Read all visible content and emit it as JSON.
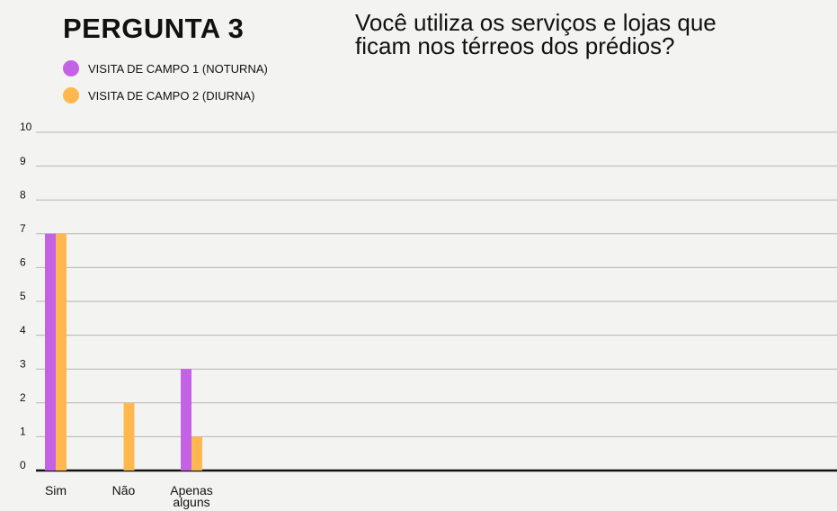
{
  "chart_data": {
    "type": "bar",
    "title": "PERGUNTA 3",
    "subtitle": "Você utiliza os serviços e lojas que ficam nos térreos dos prédios?",
    "categories": [
      "Sim",
      "Não",
      "Apenas alguns"
    ],
    "series": [
      {
        "name": "VISITA DE CAMPO 1 (NOTURNA)",
        "color": "#c462e6",
        "values": [
          7,
          0,
          3
        ]
      },
      {
        "name": "VISITA DE CAMPO 2 (DIURNA)",
        "color": "#ffb850",
        "values": [
          7,
          2,
          1
        ]
      }
    ],
    "ylim": [
      0,
      10
    ],
    "yticks": [
      0,
      1,
      2,
      3,
      4,
      5,
      6,
      7,
      8,
      9,
      10
    ],
    "grid": true
  }
}
